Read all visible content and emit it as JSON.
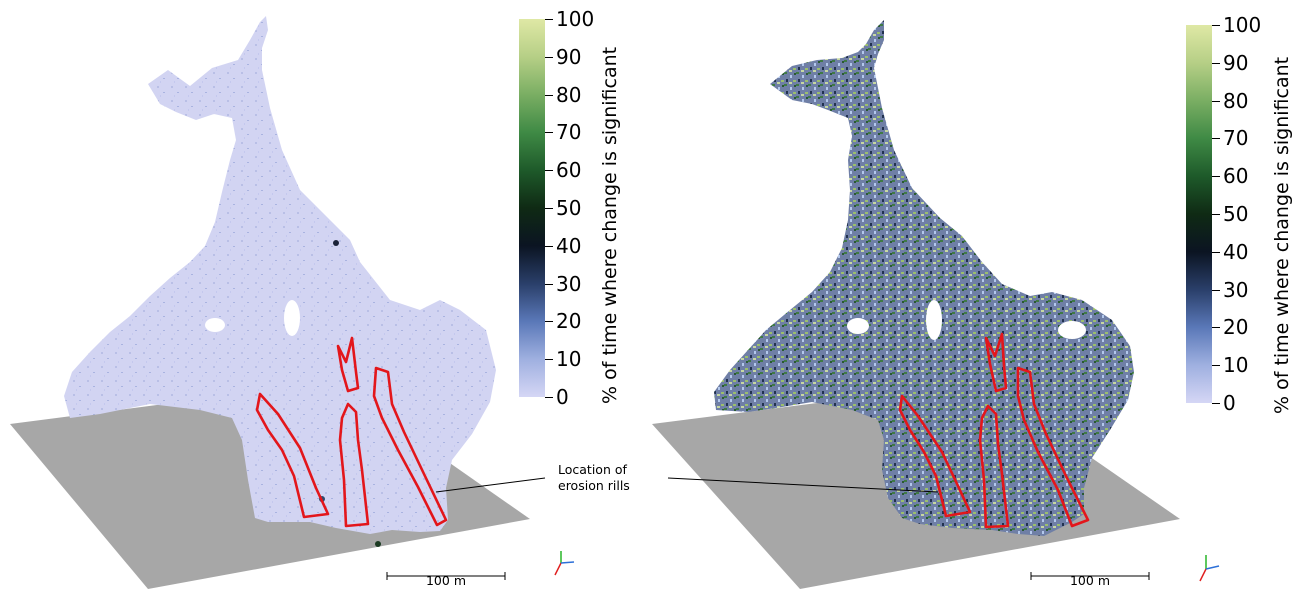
{
  "colorbar": {
    "title": "% of time where change is significant",
    "ticks": [
      "100",
      "90",
      "80",
      "70",
      "60",
      "50",
      "40",
      "30",
      "20",
      "10",
      "0"
    ],
    "colors": [
      "#d5d6f5",
      "#9fb0e0",
      "#5a78b8",
      "#2a3f6a",
      "#0b1422",
      "#0f2a14",
      "#1e5a2a",
      "#3f8a45",
      "#7aae63",
      "#b6cf86",
      "#dfe8a5"
    ]
  },
  "annotation": {
    "text": "Location of\nerosion rills"
  },
  "scale_bar": {
    "label": "100 m"
  },
  "colors": {
    "ground_plane": "#a7a7a7",
    "rill_outline": "#e3161b",
    "left_surface": "#d2d4f2",
    "right_surface": "#6f7fa6"
  }
}
